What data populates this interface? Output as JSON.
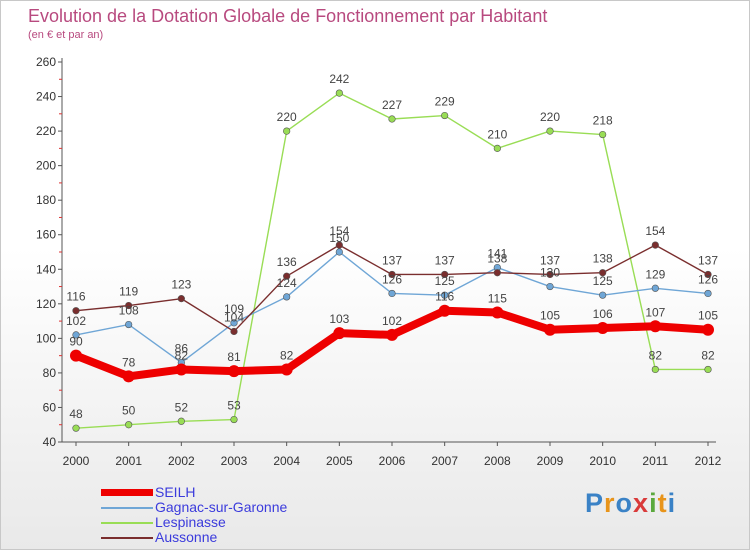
{
  "title": "Evolution de la Dotation Globale de Fonctionnement par Habitant",
  "subtitle": "(en € et par an)",
  "logo": {
    "text": "Proxiti",
    "colors": [
      "#3a82c6",
      "#e8941a",
      "#3a82c6",
      "#d93a3a",
      "#5aa83c",
      "#e8941a",
      "#3a82c6"
    ]
  },
  "chart_data": {
    "type": "line",
    "x": [
      "2000",
      "2001",
      "2002",
      "2003",
      "2004",
      "2005",
      "2006",
      "2007",
      "2008",
      "2009",
      "2010",
      "2011",
      "2012"
    ],
    "ylim": [
      40,
      260
    ],
    "yticks": [
      40,
      60,
      80,
      100,
      120,
      140,
      160,
      180,
      200,
      220,
      240,
      260
    ],
    "grid": false,
    "legend_position": "bottom-left",
    "series": [
      {
        "name": "SEILH",
        "color": "#ee0000",
        "values": [
          90,
          78,
          82,
          81,
          82,
          103,
          102,
          116,
          115,
          105,
          106,
          107,
          105
        ]
      },
      {
        "name": "Gagnac-sur-Garonne",
        "color": "#6fa6d6",
        "values": [
          102,
          108,
          86,
          109,
          124,
          150,
          126,
          125,
          141,
          130,
          125,
          129,
          126
        ]
      },
      {
        "name": "Lespinasse",
        "color": "#99dd55",
        "values": [
          48,
          50,
          52,
          53,
          220,
          242,
          227,
          229,
          210,
          220,
          218,
          82,
          82
        ]
      },
      {
        "name": "Aussonne",
        "color": "#7a2e2e",
        "values": [
          116,
          119,
          123,
          104,
          136,
          154,
          137,
          137,
          138,
          137,
          138,
          154,
          137
        ]
      }
    ]
  }
}
